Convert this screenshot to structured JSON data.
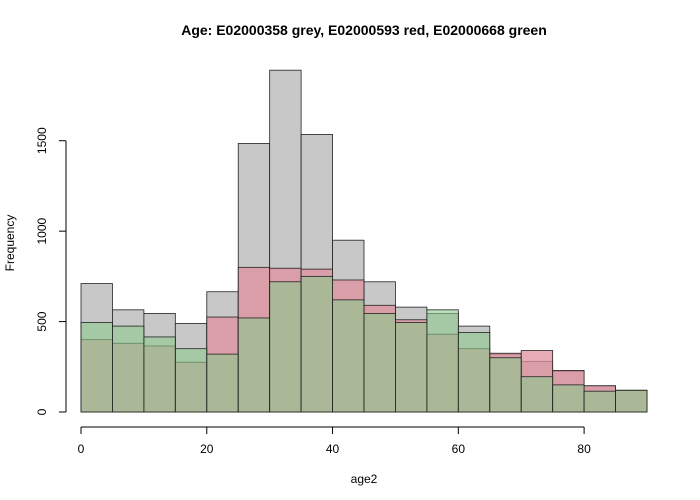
{
  "chart_data": {
    "type": "bar",
    "title": "Age: E02000358 grey, E02000593 red, E02000668 green",
    "xlabel": "age2",
    "ylabel": "Frequency",
    "xlim": [
      0,
      90
    ],
    "ylim": [
      0,
      1880
    ],
    "x_ticks": [
      0,
      20,
      40,
      60,
      80
    ],
    "y_ticks": [
      0,
      500,
      1000,
      1500
    ],
    "bin_width": 5,
    "bin_starts": [
      0,
      5,
      10,
      15,
      20,
      25,
      30,
      35,
      40,
      45,
      50,
      55,
      60,
      65,
      70,
      75,
      80,
      85
    ],
    "series": [
      {
        "name": "E02000358",
        "color": "#c8c8c8",
        "values": [
          710,
          565,
          545,
          490,
          665,
          1485,
          1890,
          1535,
          950,
          720,
          580,
          545,
          475,
          320,
          280,
          225,
          145,
          120
        ]
      },
      {
        "name": "E02000593",
        "color": "#e0909e",
        "values": [
          400,
          380,
          365,
          275,
          525,
          800,
          795,
          790,
          730,
          590,
          510,
          430,
          350,
          325,
          340,
          230,
          145,
          120
        ]
      },
      {
        "name": "E02000668",
        "color": "#8cc98c",
        "values": [
          495,
          475,
          415,
          350,
          320,
          520,
          720,
          750,
          620,
          545,
          495,
          565,
          440,
          300,
          195,
          150,
          115,
          120
        ]
      }
    ],
    "grid": false,
    "legend": "none"
  }
}
